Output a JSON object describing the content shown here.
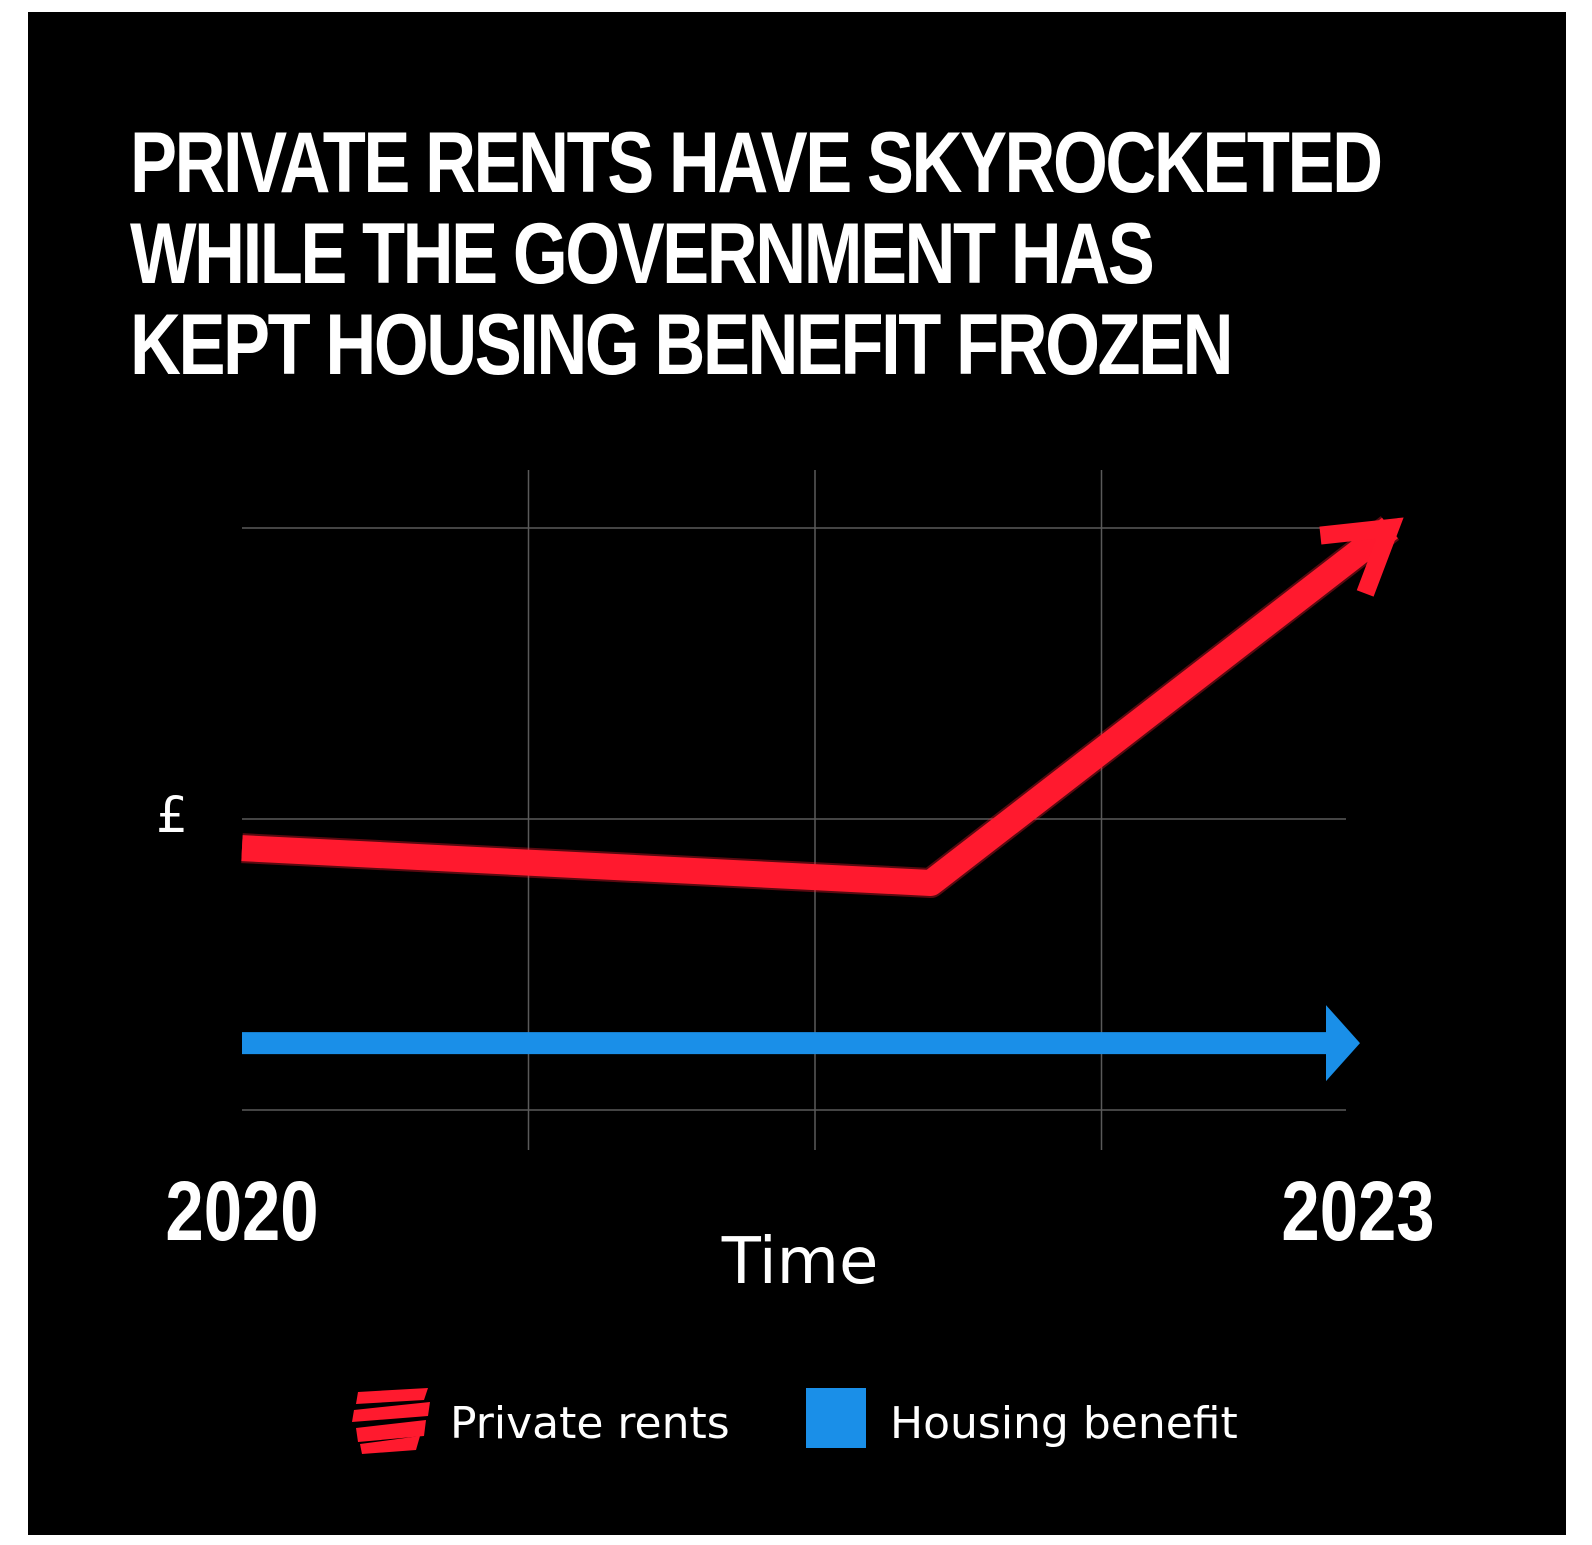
{
  "chart_data": {
    "type": "line",
    "title": "PRIVATE RENTS HAVE SKYROCKETED WHILE THE GOVERNMENT HAS KEPT HOUSING BENEFIT FROZEN",
    "title_lines": [
      "PRIVATE RENTS HAVE SKYROCKETED",
      "WHILE THE GOVERNMENT HAS",
      "KEPT HOUSING BENEFIT FROZEN"
    ],
    "xlabel": "Time",
    "ylabel": "£",
    "x_ticks": [
      "2020",
      "2023"
    ],
    "xlim": [
      2020,
      2023
    ],
    "ylim": [
      0,
      2
    ],
    "grid": true,
    "legend_position": "bottom",
    "series": [
      {
        "name": "Private rents",
        "color": "#ff1a2e",
        "style": "brush arrow",
        "points": [
          [
            2020,
            0.9
          ],
          [
            2021.8,
            0.78
          ],
          [
            2023,
            2.0
          ]
        ]
      },
      {
        "name": "Housing benefit",
        "color": "#1a8fe8",
        "style": "flat arrow",
        "points": [
          [
            2020,
            0.23
          ],
          [
            2023,
            0.23
          ]
        ]
      }
    ]
  }
}
